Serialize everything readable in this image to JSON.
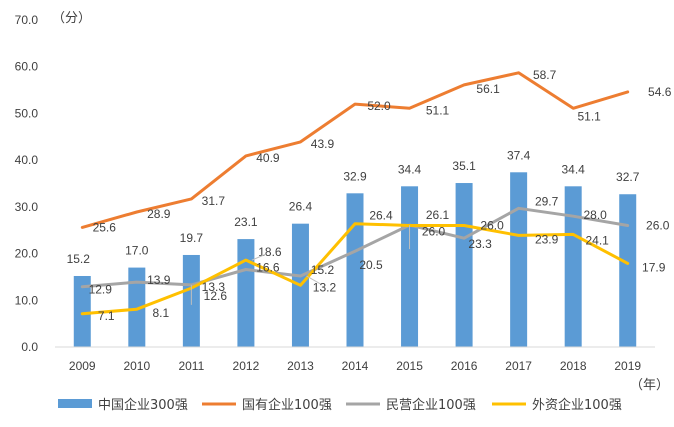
{
  "chart_data": {
    "type": "bar",
    "title": "",
    "y_unit": "（分）",
    "x_unit": "（年）",
    "ylim": [
      0,
      70
    ],
    "yticks": [
      "0.0",
      "10.0",
      "20.0",
      "30.0",
      "40.0",
      "50.0",
      "60.0",
      "70.0"
    ],
    "categories": [
      "2009",
      "2010",
      "2011",
      "2012",
      "2013",
      "2014",
      "2015",
      "2016",
      "2017",
      "2018",
      "2019"
    ],
    "grid": false,
    "legend_position": "bottom",
    "series": [
      {
        "name": "中国企业300强",
        "type": "bar",
        "color": "#5B9BD5",
        "values": [
          15.2,
          17.0,
          19.7,
          23.1,
          26.4,
          32.9,
          34.4,
          35.1,
          37.4,
          34.4,
          32.7
        ],
        "labels": [
          "15.2",
          "17.0",
          "19.7",
          "23.1",
          "26.4",
          "32.9",
          "34.4",
          "35.1",
          "37.4",
          "34.4",
          "32.7"
        ]
      },
      {
        "name": "国有企业100强",
        "type": "line",
        "color": "#ED7D31",
        "values": [
          25.6,
          28.9,
          31.7,
          40.9,
          43.9,
          52.0,
          51.1,
          56.1,
          58.7,
          51.1,
          54.6
        ],
        "labels": [
          "25.6",
          "28.9",
          "31.7",
          "40.9",
          "43.9",
          "52.0",
          "51.1",
          "56.1",
          "58.7",
          "51.1",
          "54.6"
        ]
      },
      {
        "name": "民营企业100强",
        "type": "line",
        "color": "#A5A5A5",
        "values": [
          12.9,
          13.9,
          13.3,
          16.6,
          15.2,
          20.5,
          26.1,
          23.3,
          29.7,
          28.0,
          26.0
        ],
        "labels": [
          "12.9",
          "13.9",
          "13.3",
          "16.6",
          "15.2",
          "20.5",
          "26.1",
          "23.3",
          "29.7",
          "28.0",
          "26.0"
        ]
      },
      {
        "name": "外资企业100强",
        "type": "line",
        "color": "#FFC000",
        "values": [
          7.1,
          8.1,
          12.6,
          18.6,
          13.2,
          26.4,
          26.0,
          26.0,
          23.9,
          24.1,
          17.9
        ],
        "labels": [
          "7.1",
          "8.1",
          "12.6",
          "18.6",
          "13.2",
          "26.4",
          "26.0",
          "26.0",
          "23.9",
          "24.1",
          "17.9"
        ]
      }
    ]
  }
}
